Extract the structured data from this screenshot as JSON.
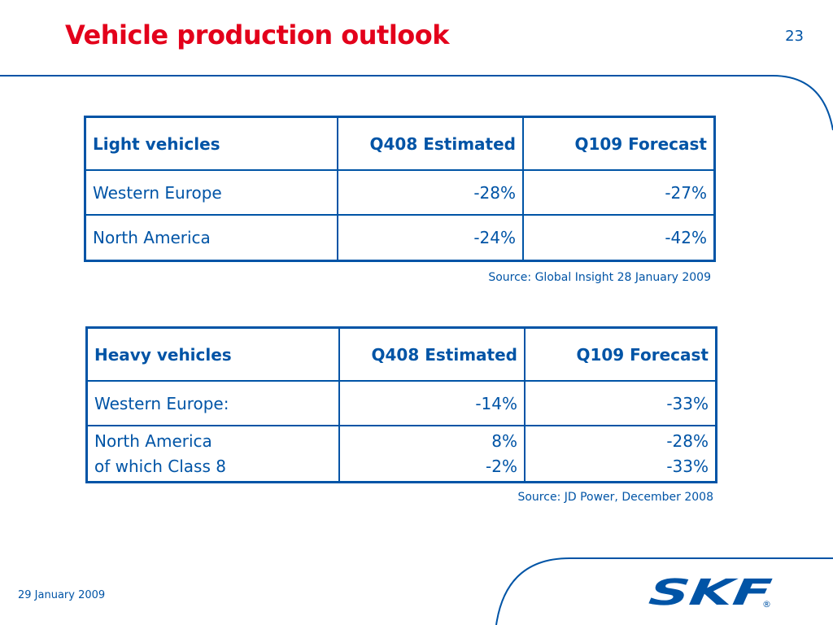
{
  "slide": {
    "title": "Vehicle production outlook",
    "page_number": "23"
  },
  "light_table": {
    "headers": [
      "Light vehicles",
      "Q408 Estimated",
      "Q109 Forecast"
    ],
    "rows": [
      {
        "region": "Western Europe",
        "q408": "-28%",
        "q109": "-27%"
      },
      {
        "region": "North America",
        "q408": "-24%",
        "q109": "-42%"
      }
    ],
    "source": "Source: Global Insight 28 January 2009"
  },
  "heavy_table": {
    "headers": [
      "Heavy vehicles",
      "Q408 Estimated",
      "Q109 Forecast"
    ],
    "rows": [
      {
        "region": "Western Europe:",
        "q408": "-14%",
        "q109": "-33%"
      },
      {
        "region": "North America",
        "q408": "8%",
        "q109": "-28%",
        "sub_region": "of which Class 8",
        "sub_q408": "-2%",
        "sub_q109": "-33%"
      }
    ],
    "source": "Source: JD Power, December 2008"
  },
  "footer": {
    "date": "29 January 2009",
    "logo_text": "SKF",
    "registered_mark": "®"
  },
  "colors": {
    "title": "#e3001b",
    "brand_blue": "#0054a6"
  }
}
